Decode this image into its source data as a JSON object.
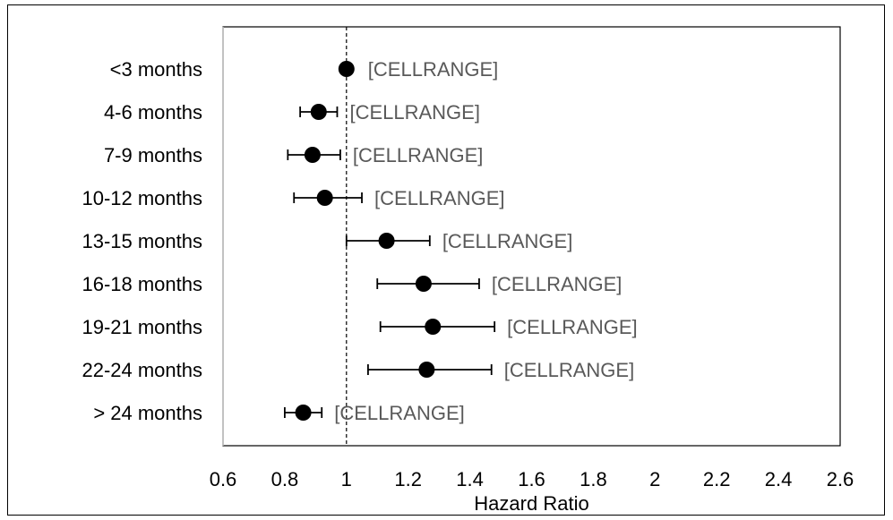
{
  "chart_data": {
    "type": "scatter",
    "title": "",
    "xlabel": "Hazard Ratio",
    "ylabel": "",
    "xlim": [
      0.6,
      2.6
    ],
    "xticks": [
      "0.6",
      "0.8",
      "1",
      "1.2",
      "1.4",
      "1.6",
      "1.8",
      "2",
      "2.2",
      "2.4",
      "2.6"
    ],
    "xtick_values": [
      0.6,
      0.8,
      1.0,
      1.2,
      1.4,
      1.6,
      1.8,
      2.0,
      2.2,
      2.4,
      2.6
    ],
    "reference_line": 1.0,
    "grid": false,
    "marker_color": "#000000",
    "label_color": "#595959",
    "categories": [
      "<3 months",
      "4-6 months",
      "7-9 months",
      "10-12 months",
      "13-15 months",
      "16-18 months",
      "19-21 months",
      "22-24 months",
      "> 24 months"
    ],
    "points": [
      {
        "label": "<3 months",
        "hr": 1.0,
        "lower": null,
        "upper": null,
        "data_label": "[CELLRANGE]"
      },
      {
        "label": "4-6 months",
        "hr": 0.91,
        "lower": 0.85,
        "upper": 0.97,
        "data_label": "[CELLRANGE]"
      },
      {
        "label": "7-9 months",
        "hr": 0.89,
        "lower": 0.81,
        "upper": 0.98,
        "data_label": "[CELLRANGE]"
      },
      {
        "label": "10-12 months",
        "hr": 0.93,
        "lower": 0.83,
        "upper": 1.05,
        "data_label": "[CELLRANGE]"
      },
      {
        "label": "13-15 months",
        "hr": 1.13,
        "lower": 1.0,
        "upper": 1.27,
        "data_label": "[CELLRANGE]"
      },
      {
        "label": "16-18 months",
        "hr": 1.25,
        "lower": 1.1,
        "upper": 1.43,
        "data_label": "[CELLRANGE]"
      },
      {
        "label": "19-21 months",
        "hr": 1.28,
        "lower": 1.11,
        "upper": 1.48,
        "data_label": "[CELLRANGE]"
      },
      {
        "label": "22-24 months",
        "hr": 1.26,
        "lower": 1.07,
        "upper": 1.47,
        "data_label": "[CELLRANGE]"
      },
      {
        "label": "> 24 months",
        "hr": 0.86,
        "lower": 0.8,
        "upper": 0.92,
        "data_label": "[CELLRANGE]"
      }
    ]
  }
}
